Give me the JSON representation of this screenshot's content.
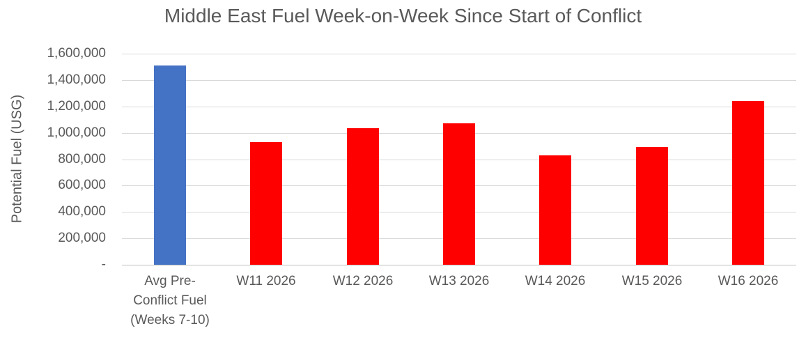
{
  "chart_data": {
    "type": "bar",
    "title": "Middle East Fuel Week-on-Week Since Start of Conflict",
    "xlabel": "",
    "ylabel": "Potential Fuel (USG)",
    "categories": [
      "Avg Pre-Conflict Fuel (Weeks 7-10)",
      "W11 2026",
      "W12 2026",
      "W13 2026",
      "W14 2026",
      "W15 2026",
      "W16 2026"
    ],
    "values": [
      1510000,
      930000,
      1035000,
      1070000,
      830000,
      895000,
      1240000
    ],
    "bar_colors": [
      "#4472C4",
      "#FF0000",
      "#FF0000",
      "#FF0000",
      "#FF0000",
      "#FF0000",
      "#FF0000"
    ],
    "ylim": [
      0,
      1600000
    ],
    "ytick_interval": 200000,
    "ytick_labels": [
      "-",
      "200,000",
      "400,000",
      "600,000",
      "800,000",
      "1,000,000",
      "1,200,000",
      "1,400,000",
      "1,600,000"
    ],
    "grid": true,
    "legend": "none",
    "colors": {
      "baseline_bar": "#4472C4",
      "conflict_bar": "#FF0000",
      "gridline": "#D9D9D9",
      "text": "#595959",
      "background": "#FFFFFF"
    }
  }
}
